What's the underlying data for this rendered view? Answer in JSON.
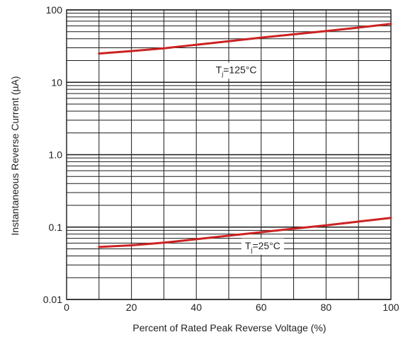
{
  "chart_data": {
    "type": "line",
    "title": "",
    "xlabel": "Percent of Rated Peak Reverse Voltage (%)",
    "ylabel": "Instantaneous Reverse Current (µA)",
    "x_scale": "linear",
    "y_scale": "log",
    "xlim": [
      0,
      100
    ],
    "ylim": [
      0.01,
      100
    ],
    "x_ticks": [
      {
        "value": 0,
        "label": "0"
      },
      {
        "value": 20,
        "label": "20"
      },
      {
        "value": 40,
        "label": "40"
      },
      {
        "value": 60,
        "label": "60"
      },
      {
        "value": 80,
        "label": "80"
      },
      {
        "value": 100,
        "label": "100"
      }
    ],
    "y_ticks": [
      {
        "value": 0.01,
        "label": "0.01"
      },
      {
        "value": 0.1,
        "label": "0.1"
      },
      {
        "value": 1,
        "label": "1.0"
      },
      {
        "value": 10,
        "label": "10"
      },
      {
        "value": 100,
        "label": "100"
      }
    ],
    "grid": true,
    "line_color": "#cc2222",
    "series": [
      {
        "annotation": {
          "main": "T",
          "sub": "j",
          "rest": "=125°C",
          "x": 46,
          "y": 14
        },
        "x": [
          10,
          20,
          30,
          40,
          50,
          60,
          70,
          80,
          90,
          100
        ],
        "values": [
          25,
          27,
          29.5,
          33,
          37,
          41.5,
          46,
          51,
          57,
          64
        ]
      },
      {
        "annotation": {
          "main": "T",
          "sub": "j",
          "rest": "=25°C",
          "x": 55,
          "y": 0.052
        },
        "x": [
          10,
          20,
          30,
          40,
          50,
          60,
          70,
          80,
          90,
          100
        ],
        "values": [
          0.053,
          0.056,
          0.061,
          0.068,
          0.076,
          0.085,
          0.095,
          0.106,
          0.119,
          0.134
        ]
      }
    ]
  }
}
